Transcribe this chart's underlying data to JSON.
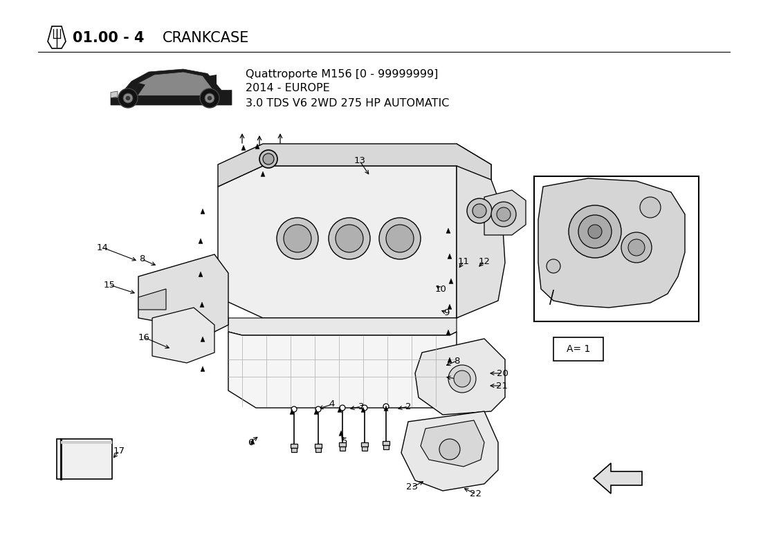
{
  "title_bold": "01.00 - 4",
  "title_normal": "CRANKCASE",
  "model_line1": "Quattroporte M156 [0 - 99999999]",
  "model_line2": "2014 - EUROPE",
  "model_line3": "3.0 TDS V6 2WD 275 HP AUTOMATIC",
  "bg_color": "#ffffff",
  "line_color": "#000000",
  "legend_text": "A= 1"
}
